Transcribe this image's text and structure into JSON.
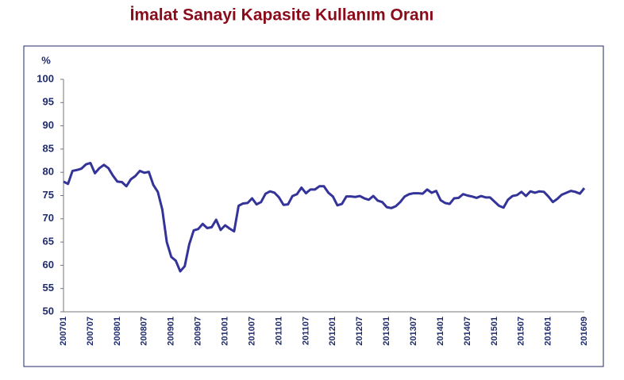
{
  "chart_data": {
    "type": "line",
    "title": "İmalat Sanayi Kapasite Kullanım Oranı",
    "y_label": "%",
    "categories": [
      "200701",
      null,
      null,
      null,
      null,
      null,
      "200707",
      null,
      null,
      null,
      null,
      null,
      "200801",
      null,
      null,
      null,
      null,
      null,
      "200807",
      null,
      null,
      null,
      null,
      null,
      "200901",
      null,
      null,
      null,
      null,
      null,
      "200907",
      null,
      null,
      null,
      null,
      null,
      "201001",
      null,
      null,
      null,
      null,
      null,
      "201007",
      null,
      null,
      null,
      null,
      null,
      "201101",
      null,
      null,
      null,
      null,
      null,
      "201107",
      null,
      null,
      null,
      null,
      null,
      "201201",
      null,
      null,
      null,
      null,
      null,
      "201207",
      null,
      null,
      null,
      null,
      null,
      "201301",
      null,
      null,
      null,
      null,
      null,
      "201307",
      null,
      null,
      null,
      null,
      null,
      "201401",
      null,
      null,
      null,
      null,
      null,
      "201407",
      null,
      null,
      null,
      null,
      null,
      "201501",
      null,
      null,
      null,
      null,
      null,
      "201507",
      null,
      null,
      null,
      null,
      null,
      "201601",
      null,
      null,
      null,
      null,
      null,
      null,
      null,
      "201609"
    ],
    "values": [
      78,
      77.5,
      80.3,
      80.5,
      80.8,
      81.7,
      82,
      79.8,
      80.9,
      81.6,
      80.9,
      79.3,
      78,
      77.9,
      77,
      78.5,
      79.2,
      80.3,
      79.9,
      80.1,
      77.3,
      75.8,
      72,
      65,
      61.8,
      61,
      58.7,
      59.8,
      64.5,
      67.5,
      67.8,
      68.9,
      68,
      68.2,
      69.8,
      67.6,
      68.6,
      67.9,
      67.3,
      72.8,
      73.3,
      73.4,
      74.4,
      73.1,
      73.6,
      75.4,
      75.9,
      75.6,
      74.6,
      73,
      73.1,
      74.9,
      75.3,
      76.7,
      75.5,
      76.3,
      76.3,
      77,
      77,
      75.6,
      74.8,
      72.9,
      73.2,
      74.8,
      74.8,
      74.7,
      74.9,
      74.4,
      74.1,
      74.9,
      73.9,
      73.6,
      72.5,
      72.3,
      72.7,
      73.6,
      74.8,
      75.3,
      75.5,
      75.5,
      75.4,
      76.3,
      75.6,
      76,
      74,
      73.4,
      73.2,
      74.4,
      74.5,
      75.3,
      75,
      74.8,
      74.5,
      74.9,
      74.6,
      74.6,
      73.7,
      72.8,
      72.4,
      74.1,
      74.9,
      75.1,
      75.8,
      74.9,
      75.9,
      75.6,
      75.9,
      75.8,
      74.8,
      73.6,
      74.3,
      75.2,
      75.6,
      76,
      75.8,
      75.4,
      76.6
    ],
    "color": "#333399",
    "ylim": [
      50,
      100
    ],
    "yticks": [
      50,
      55,
      60,
      65,
      70,
      75,
      80,
      85,
      90,
      95,
      100
    ]
  }
}
